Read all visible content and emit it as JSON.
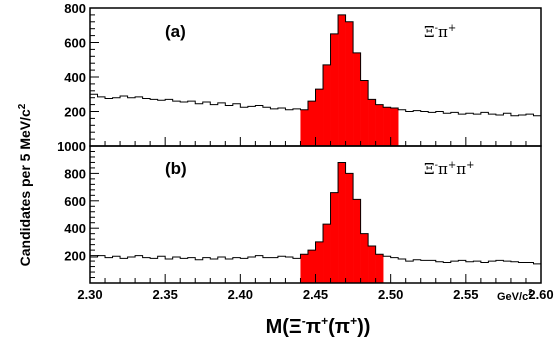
{
  "chart_data": [
    {
      "type": "histogram",
      "panel": "(a)",
      "channel": "Ξ⁻π⁺",
      "bin_width": 0.005,
      "x_range": [
        2.3,
        2.6
      ],
      "ylim": [
        0,
        800
      ],
      "y_ticks": [
        200,
        400,
        600,
        800
      ],
      "x_ticks": [],
      "bin_low_edges": [
        2.3,
        2.305,
        2.31,
        2.315,
        2.32,
        2.325,
        2.33,
        2.335,
        2.34,
        2.345,
        2.35,
        2.355,
        2.36,
        2.365,
        2.37,
        2.375,
        2.38,
        2.385,
        2.39,
        2.395,
        2.4,
        2.405,
        2.41,
        2.415,
        2.42,
        2.425,
        2.43,
        2.435,
        2.44,
        2.445,
        2.45,
        2.455,
        2.46,
        2.465,
        2.47,
        2.475,
        2.48,
        2.485,
        2.49,
        2.495,
        2.5,
        2.505,
        2.51,
        2.515,
        2.52,
        2.525,
        2.53,
        2.535,
        2.54,
        2.545,
        2.55,
        2.555,
        2.56,
        2.565,
        2.57,
        2.575,
        2.58,
        2.585,
        2.59,
        2.595
      ],
      "counts": [
        300,
        285,
        275,
        280,
        290,
        280,
        285,
        275,
        270,
        265,
        270,
        260,
        255,
        260,
        245,
        255,
        240,
        250,
        235,
        245,
        225,
        230,
        235,
        225,
        215,
        220,
        210,
        215,
        210,
        260,
        330,
        470,
        650,
        760,
        720,
        540,
        380,
        270,
        240,
        225,
        220,
        210,
        200,
        205,
        200,
        195,
        200,
        190,
        195,
        185,
        190,
        185,
        195,
        185,
        180,
        190,
        175,
        180,
        185,
        175
      ],
      "highlight_range": [
        2.44,
        2.505
      ],
      "highlight_color": "#ff0000"
    },
    {
      "type": "histogram",
      "panel": "(b)",
      "channel": "Ξ⁻π⁺π⁺",
      "bin_width": 0.005,
      "x_range": [
        2.3,
        2.6
      ],
      "ylim": [
        0,
        1000
      ],
      "y_ticks": [
        200,
        400,
        600,
        800,
        1000
      ],
      "x_ticks": [
        "2.30",
        "2.35",
        "2.40",
        "2.45",
        "2.50",
        "2.55",
        "2.60"
      ],
      "bin_low_edges": [
        2.3,
        2.305,
        2.31,
        2.315,
        2.32,
        2.325,
        2.33,
        2.335,
        2.34,
        2.345,
        2.35,
        2.355,
        2.36,
        2.365,
        2.37,
        2.375,
        2.38,
        2.385,
        2.39,
        2.395,
        2.4,
        2.405,
        2.41,
        2.415,
        2.42,
        2.425,
        2.43,
        2.435,
        2.44,
        2.445,
        2.45,
        2.455,
        2.46,
        2.465,
        2.47,
        2.475,
        2.48,
        2.485,
        2.49,
        2.495,
        2.5,
        2.505,
        2.51,
        2.515,
        2.52,
        2.525,
        2.53,
        2.535,
        2.54,
        2.545,
        2.55,
        2.555,
        2.56,
        2.565,
        2.57,
        2.575,
        2.58,
        2.585,
        2.59,
        2.595
      ],
      "counts": [
        190,
        200,
        185,
        195,
        180,
        190,
        200,
        185,
        180,
        195,
        175,
        190,
        180,
        185,
        170,
        185,
        175,
        190,
        175,
        185,
        180,
        190,
        200,
        185,
        185,
        195,
        190,
        180,
        210,
        240,
        300,
        430,
        660,
        880,
        800,
        610,
        360,
        270,
        210,
        195,
        185,
        175,
        160,
        170,
        165,
        165,
        155,
        150,
        160,
        165,
        155,
        160,
        150,
        160,
        165,
        160,
        155,
        150,
        150,
        140
      ],
      "highlight_range": [
        2.44,
        2.495
      ],
      "highlight_color": "#ff0000"
    }
  ],
  "axes": {
    "ylabel": "Candidates per 5 MeV/c",
    "ylabel_sup": "2",
    "xunit": "GeV/c",
    "xunit_sup": "2",
    "xlabel_main": "M(Ξ",
    "xlabel_minus": "-",
    "xlabel_pi1": "π",
    "xlabel_plus1": "+",
    "xlabel_open": "(π",
    "xlabel_plus2": "+",
    "xlabel_close": "))"
  },
  "panel_a": {
    "label": "(a)",
    "channel_base": "Ξ",
    "channel_minus": "-",
    "channel_pi": "π",
    "channel_plus": "+"
  },
  "panel_b": {
    "label": "(b)",
    "channel_base": "Ξ",
    "channel_minus": "-",
    "channel_pi": "π",
    "channel_plus1": "+",
    "channel_pi2": "π",
    "channel_plus2": "+"
  }
}
